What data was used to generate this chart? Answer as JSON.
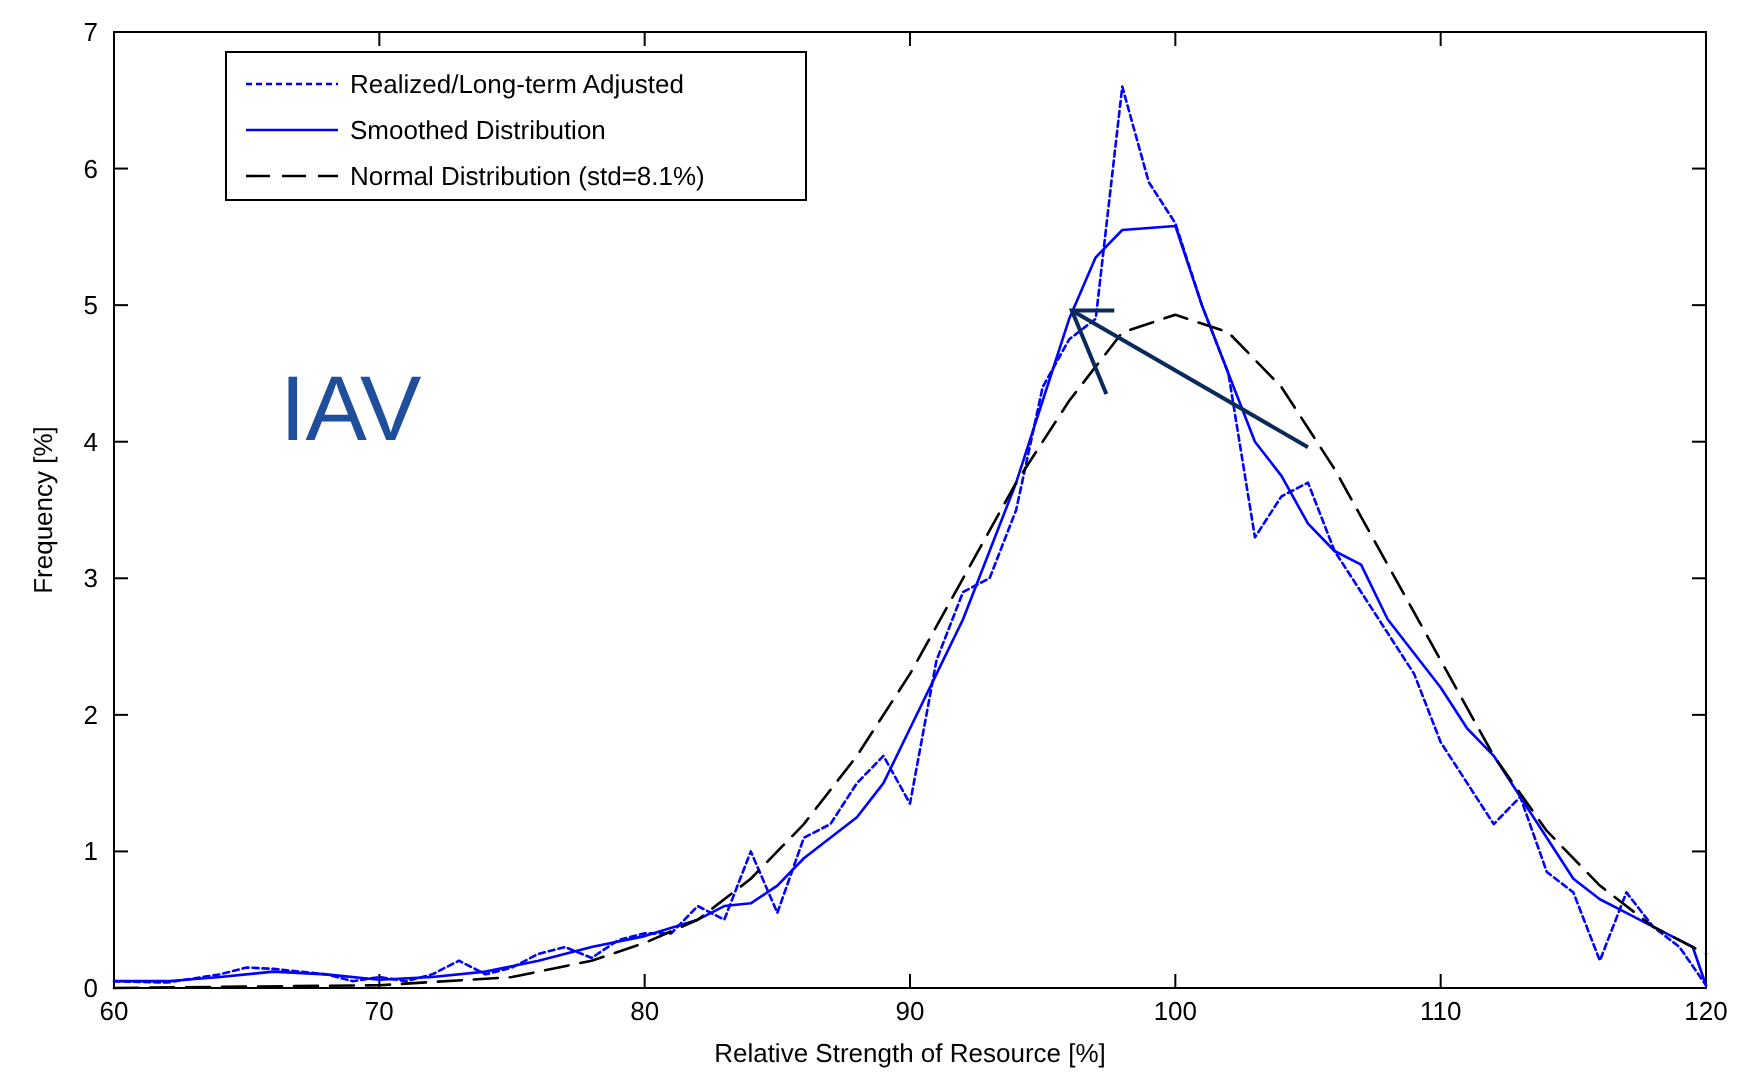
{
  "chart_data": {
    "type": "line",
    "xlabel": "Relative Strength of Resource [%]",
    "ylabel": "Frequency [%]",
    "xlim": [
      60,
      120
    ],
    "xticks": [
      60,
      70,
      80,
      90,
      100,
      110,
      120
    ],
    "ylim": [
      0,
      7
    ],
    "yticks": [
      0,
      1,
      2,
      3,
      4,
      5,
      6,
      7
    ],
    "grid": false,
    "legend": "top left",
    "marker": "none",
    "annotations": [
      "IAV"
    ],
    "series": [
      {
        "name": "Realized/Long-term Adjusted",
        "color": "#0000ff",
        "line_style": "dotted",
        "x": [
          60,
          62,
          64,
          65,
          66,
          68,
          69,
          70,
          71,
          72,
          73,
          74,
          75,
          76,
          77,
          78,
          79,
          80,
          81,
          82,
          83,
          84,
          85,
          86,
          87,
          88,
          89,
          90,
          91,
          92,
          93,
          94,
          95,
          96,
          97,
          98,
          99,
          100,
          101,
          102,
          103,
          104,
          105,
          106,
          107,
          108,
          109,
          110,
          111,
          112,
          113,
          114,
          115,
          116,
          117,
          118,
          119,
          120
        ],
        "values": [
          0.05,
          0.04,
          0.1,
          0.15,
          0.14,
          0.1,
          0.05,
          0.08,
          0.05,
          0.1,
          0.2,
          0.1,
          0.15,
          0.25,
          0.3,
          0.22,
          0.35,
          0.4,
          0.4,
          0.6,
          0.5,
          1.0,
          0.55,
          1.1,
          1.2,
          1.5,
          1.7,
          1.35,
          2.4,
          2.9,
          3.0,
          3.5,
          4.4,
          4.75,
          4.9,
          6.6,
          5.9,
          5.6,
          5.0,
          4.5,
          3.3,
          3.6,
          3.7,
          3.2,
          2.9,
          2.6,
          2.3,
          1.8,
          1.5,
          1.2,
          1.4,
          0.85,
          0.7,
          0.2,
          0.7,
          0.45,
          0.3,
          0.02
        ]
      },
      {
        "name": "Smoothed Distribution",
        "color": "#0000ff",
        "line_style": "solid",
        "x": [
          60,
          62,
          64,
          66,
          68,
          70,
          72,
          74,
          76,
          78,
          80,
          82,
          83,
          84,
          85,
          86,
          88,
          89,
          90,
          91,
          92,
          93,
          94,
          95,
          96,
          97,
          98,
          100,
          101,
          102,
          103,
          104,
          105,
          106,
          107,
          108,
          110,
          111,
          112,
          113,
          114,
          115,
          116,
          117,
          118,
          119,
          119.5,
          120
        ],
        "values": [
          0.05,
          0.05,
          0.08,
          0.12,
          0.1,
          0.06,
          0.08,
          0.12,
          0.2,
          0.3,
          0.38,
          0.5,
          0.6,
          0.62,
          0.75,
          0.95,
          1.25,
          1.5,
          1.9,
          2.3,
          2.7,
          3.2,
          3.7,
          4.3,
          4.9,
          5.35,
          5.55,
          5.58,
          5.0,
          4.5,
          4.0,
          3.75,
          3.4,
          3.2,
          3.1,
          2.7,
          2.2,
          1.9,
          1.7,
          1.4,
          1.1,
          0.8,
          0.65,
          0.55,
          0.45,
          0.35,
          0.3,
          0.02
        ]
      },
      {
        "name": "Normal Distribution (std=8.1%)",
        "color": "#000000",
        "line_style": "dashed",
        "x": [
          60,
          70,
          75,
          78,
          80,
          82,
          84,
          86,
          88,
          90,
          92,
          94,
          96,
          98,
          100,
          102,
          104,
          106,
          108,
          110,
          112,
          114,
          116,
          118,
          120
        ],
        "values": [
          0.0,
          0.02,
          0.08,
          0.2,
          0.33,
          0.5,
          0.8,
          1.2,
          1.7,
          2.3,
          3.0,
          3.7,
          4.3,
          4.8,
          4.93,
          4.8,
          4.4,
          3.8,
          3.1,
          2.4,
          1.7,
          1.15,
          0.75,
          0.45,
          0.25
        ]
      }
    ]
  }
}
